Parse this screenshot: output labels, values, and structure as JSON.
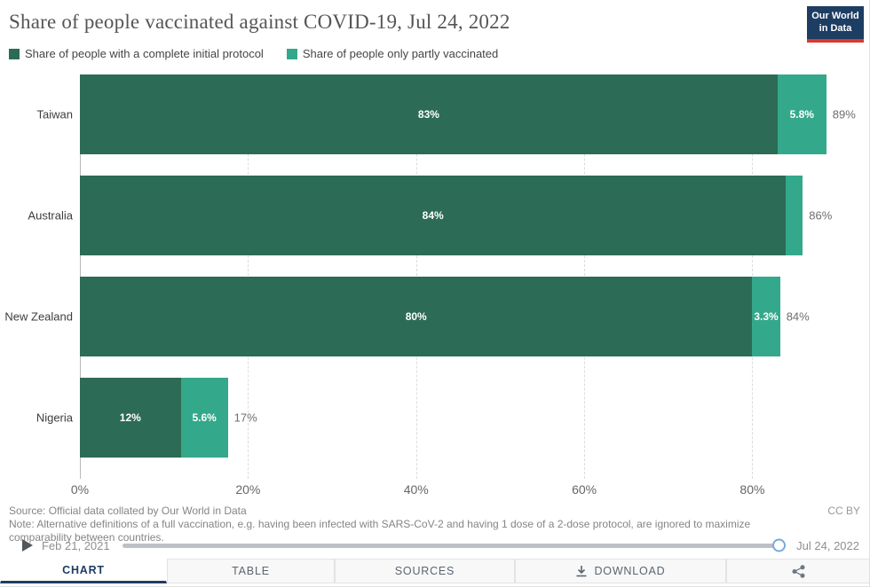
{
  "header": {
    "title": "Share of people vaccinated against COVID-19, Jul 24, 2022",
    "logo_line1": "Our World",
    "logo_line2": "in Data"
  },
  "legend": {
    "items": [
      {
        "label": "Share of people with a complete initial protocol",
        "color": "#2c6b55"
      },
      {
        "label": "Share of people only partly vaccinated",
        "color": "#34a88a"
      }
    ]
  },
  "chart_data": {
    "type": "bar",
    "orientation": "horizontal",
    "stacked": true,
    "title": "Share of people vaccinated against COVID-19, Jul 24, 2022",
    "categories": [
      "Taiwan",
      "Australia",
      "New Zealand",
      "Nigeria"
    ],
    "series": [
      {
        "name": "Share of people with a complete initial protocol",
        "color": "#2c6b55",
        "values": [
          83,
          84,
          80,
          12
        ],
        "labels": [
          "83%",
          "84%",
          "80%",
          "12%"
        ]
      },
      {
        "name": "Share of people only partly vaccinated",
        "color": "#34a88a",
        "values": [
          5.8,
          2,
          3.3,
          5.6
        ],
        "labels": [
          "5.8%",
          "",
          "3.3%",
          "5.6%"
        ]
      }
    ],
    "totals": [
      "89%",
      "86%",
      "84%",
      "17%"
    ],
    "x_ticks": [
      0,
      20,
      40,
      60,
      80
    ],
    "x_tick_labels": [
      "0%",
      "20%",
      "40%",
      "60%",
      "80%"
    ],
    "xlim": [
      0,
      94
    ],
    "grid": "dashed-vertical",
    "legend_position": "top"
  },
  "footer": {
    "source": "Source: Official data collated by Our World in Data",
    "note": "Note: Alternative definitions of a full vaccination, e.g. having been infected with SARS-CoV-2 and having 1 dose of a 2-dose protocol, are ignored to maximize comparability between countries.",
    "license": "CC BY"
  },
  "timeline": {
    "start_date": "Feb 21, 2021",
    "end_date": "Jul 24, 2022"
  },
  "tabs": [
    {
      "label": "CHART",
      "icon": "",
      "active": true
    },
    {
      "label": "TABLE",
      "icon": "",
      "active": false
    },
    {
      "label": "SOURCES",
      "icon": "",
      "active": false
    },
    {
      "label": "DOWNLOAD",
      "icon": "download-icon",
      "active": false
    },
    {
      "label": "",
      "icon": "share-icon",
      "active": false
    }
  ]
}
